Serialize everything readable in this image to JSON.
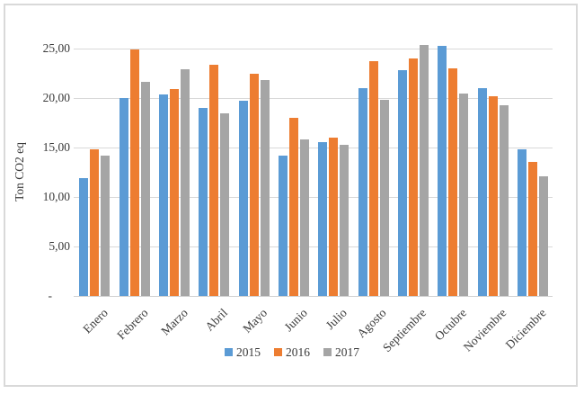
{
  "chart_data": {
    "type": "bar",
    "title": "",
    "xlabel": "",
    "ylabel": "Ton CO2 eq",
    "ylim": [
      0,
      25
    ],
    "grid": true,
    "legend_position": "bottom",
    "categories": [
      "Enero",
      "Febrero",
      "Marzo",
      "Abril",
      "Mayo",
      "Junio",
      "Julio",
      "Agosto",
      "Septiembre",
      "Octubre",
      "Noviembre",
      "Diciembre"
    ],
    "series": [
      {
        "name": "2015",
        "color": "#5B9BD5",
        "values": [
          11.9,
          20.0,
          20.3,
          19.0,
          19.7,
          14.2,
          15.5,
          21.0,
          22.8,
          25.2,
          21.0,
          14.8
        ]
      },
      {
        "name": "2016",
        "color": "#ED7D31",
        "values": [
          14.8,
          24.9,
          20.9,
          23.3,
          22.4,
          18.0,
          16.0,
          23.7,
          24.0,
          23.0,
          20.1,
          13.5
        ]
      },
      {
        "name": "2017",
        "color": "#A5A5A5",
        "values": [
          14.2,
          21.6,
          22.9,
          18.4,
          21.8,
          15.8,
          15.2,
          19.8,
          25.3,
          20.4,
          19.2,
          12.1
        ]
      }
    ],
    "y_ticks": [
      {
        "value": 0,
        "label": "-"
      },
      {
        "value": 5,
        "label": "5,00"
      },
      {
        "value": 10,
        "label": "10,00"
      },
      {
        "value": 15,
        "label": "15,00"
      },
      {
        "value": 20,
        "label": "20,00"
      },
      {
        "value": 25,
        "label": "25,00"
      }
    ]
  },
  "colors": {
    "series_2015": "#5B9BD5",
    "series_2016": "#ED7D31",
    "series_2017": "#A5A5A5",
    "gridline": "#D9D9D9",
    "chart_border": "#D9D9D9",
    "text": "#3A3A3A",
    "background": "#FFFFFF"
  }
}
